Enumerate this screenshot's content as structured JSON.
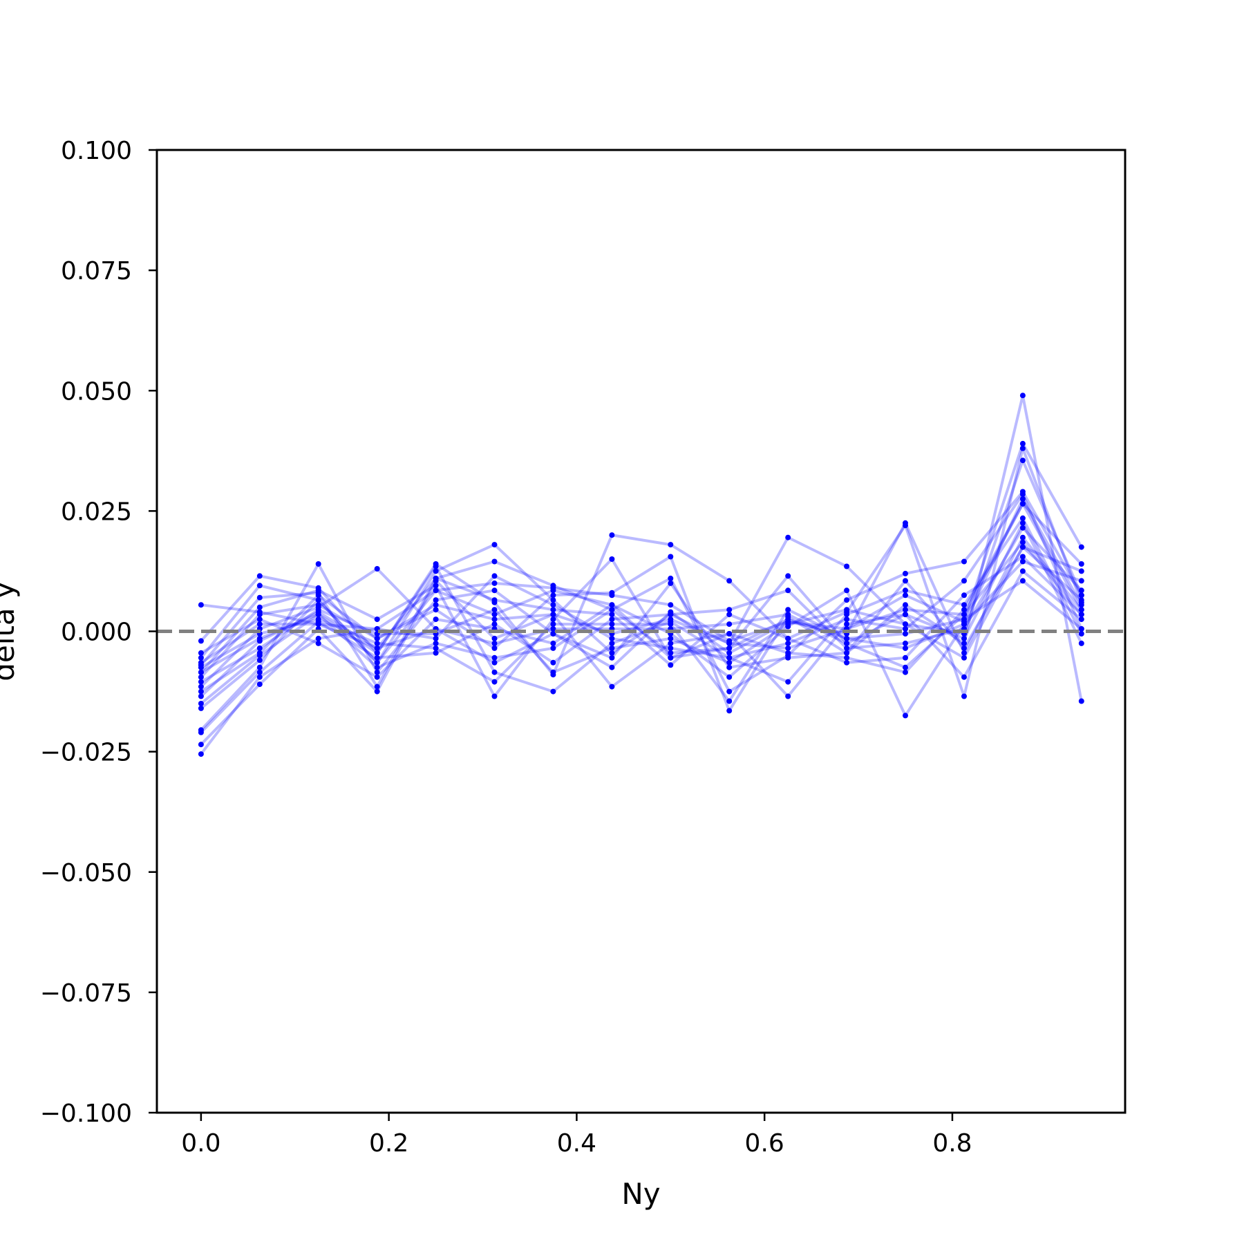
{
  "chart_data": {
    "type": "line",
    "xlabel": "Ny",
    "ylabel": "delta y",
    "xlim": [
      -0.047,
      0.984
    ],
    "ylim": [
      -0.1,
      0.1
    ],
    "x_ticks": [
      "0.0",
      "0.2",
      "0.4",
      "0.6",
      "0.8"
    ],
    "x_tick_values": [
      0.0,
      0.2,
      0.4,
      0.6,
      0.8
    ],
    "y_ticks": [
      "0.100",
      "0.075",
      "0.050",
      "0.025",
      "0.000",
      "−0.025",
      "−0.050",
      "−0.075",
      "−0.100"
    ],
    "y_tick_values": [
      0.1,
      0.075,
      0.05,
      0.025,
      0.0,
      -0.025,
      -0.05,
      -0.075,
      -0.1
    ],
    "grid": false,
    "reference_line": {
      "y": 0.0,
      "style": "dashed",
      "color": "#808080"
    },
    "series_color": "#0000ff",
    "x": [
      0.0,
      0.0625,
      0.125,
      0.1875,
      0.25,
      0.3125,
      0.375,
      0.4375,
      0.5,
      0.5625,
      0.625,
      0.6875,
      0.75,
      0.8125,
      0.875,
      0.9375
    ],
    "series": [
      {
        "values": [
          0.0055,
          0.004,
          0.0015,
          0.0005,
          0.0085,
          0.01,
          0.009,
          0.0075,
          0.0055,
          -0.002,
          0.002,
          0.0005,
          0.0075,
          0.002,
          0.039,
          0.0175
        ]
      },
      {
        "values": [
          -0.002,
          0.0115,
          0.009,
          -0.0045,
          0.014,
          0.006,
          -0.009,
          0.02,
          0.018,
          0.0105,
          -0.0015,
          0.004,
          0.022,
          -0.0135,
          0.038,
          0.006
        ]
      },
      {
        "values": [
          -0.0055,
          0.0095,
          0.0065,
          -0.0065,
          0.0125,
          0.018,
          0.0065,
          -0.0045,
          0.0035,
          -0.0025,
          0.0195,
          0.0135,
          0.0015,
          -0.0055,
          0.0175,
          0.0125
        ]
      },
      {
        "values": [
          -0.007,
          0.007,
          0.008,
          -0.0115,
          0.011,
          0.0145,
          0.0095,
          0.0045,
          0.011,
          -0.0125,
          -0.005,
          0.0065,
          0.012,
          0.0145,
          0.029,
          0.0075
        ]
      },
      {
        "values": [
          -0.0085,
          0.005,
          0.0085,
          0.0025,
          0.0095,
          -0.0135,
          0.0025,
          0.015,
          -0.0055,
          -0.0035,
          0.0115,
          -0.0025,
          -0.0075,
          0.0035,
          0.0265,
          0.014
        ]
      },
      {
        "values": [
          -0.0095,
          0.0035,
          0.0055,
          -0.0015,
          0.0045,
          -0.0035,
          0.0075,
          0.008,
          0.0155,
          -0.0165,
          0.003,
          -0.0045,
          0.0055,
          -0.0025,
          0.049,
          -0.0145
        ]
      },
      {
        "values": [
          -0.0115,
          0.0005,
          0.005,
          0.013,
          0.0005,
          -0.0065,
          -0.0005,
          -0.0075,
          0.004,
          -0.0045,
          0.002,
          -0.0005,
          0.0225,
          -0.0045,
          0.0195,
          0.0045
        ]
      },
      {
        "values": [
          -0.0135,
          -0.002,
          0.004,
          -0.0035,
          0.011,
          0.0065,
          0.0045,
          0.0035,
          -0.007,
          0.0035,
          -0.0015,
          -0.0065,
          -0.0055,
          0.0075,
          0.0155,
          0.0035
        ]
      },
      {
        "values": [
          -0.015,
          -0.005,
          0.0035,
          -0.0045,
          0.0135,
          -0.0085,
          -0.0125,
          -0.0025,
          0.002,
          -0.0055,
          -0.0105,
          0.0035,
          0.0085,
          0.0055,
          0.0235,
          -0.0005
        ]
      },
      {
        "values": [
          -0.016,
          -0.006,
          0.0065,
          -0.0065,
          0.0085,
          0.0035,
          0.0085,
          0.0055,
          -0.0005,
          -0.0095,
          0.001,
          0.0085,
          -0.0175,
          0.0015,
          0.0145,
          0.0105
        ]
      },
      {
        "values": [
          -0.0205,
          -0.0075,
          0.014,
          -0.0085,
          0.0065,
          0.0085,
          -0.0005,
          -0.0055,
          0.01,
          -0.0075,
          -0.0055,
          -0.0045,
          0.0105,
          -0.0035,
          0.0175,
          0.0065
        ]
      },
      {
        "values": [
          -0.021,
          -0.0085,
          0.002,
          -0.0055,
          -0.0045,
          0.0015,
          -0.0065,
          0.0025,
          0.0035,
          0.0045,
          0.0085,
          -0.0035,
          -0.0025,
          0.0005,
          0.0215,
          0.0085
        ]
      },
      {
        "values": [
          -0.0235,
          -0.011,
          0.0005,
          -0.0125,
          0.0105,
          -0.0015,
          0.0035,
          -0.0115,
          -0.0025,
          -0.0005,
          -0.0135,
          0.0015,
          0.0035,
          -0.0095,
          0.0125,
          0.0025
        ]
      },
      {
        "values": [
          -0.0255,
          -0.0095,
          -0.0015,
          0.0005,
          -0.0015,
          0.0115,
          0.0055,
          -0.0015,
          -0.0035,
          -0.0055,
          -0.0025,
          0.0025,
          0.0005,
          0.0105,
          0.0285,
          0.0005
        ]
      },
      {
        "values": [
          -0.0075,
          -0.0005,
          0.0025,
          -0.0025,
          -0.0035,
          -0.0105,
          0.0015,
          0.0015,
          0.0015,
          -0.0145,
          0.0045,
          -0.0015,
          -0.0005,
          0.0025,
          0.0105,
          0.0005
        ]
      },
      {
        "values": [
          -0.0045,
          0.0025,
          -0.0025,
          -0.0095,
          0.0025,
          0.0005,
          -0.0025,
          0.0055,
          -0.0055,
          -0.0005,
          -0.0045,
          -0.0055,
          -0.0085,
          0.0045,
          0.0265,
          0.0045
        ]
      },
      {
        "values": [
          -0.0105,
          -0.0035,
          0.0045,
          -0.0005,
          -0.0005,
          0.0045,
          -0.0085,
          -0.0035,
          -0.0015,
          -0.0065,
          0.0015,
          0.0045,
          0.0015,
          -0.0005,
          0.0355,
          0.0075
        ]
      },
      {
        "values": [
          -0.0065,
          0.0015,
          0.0015,
          -0.0035,
          0.0005,
          -0.0025,
          0.0005,
          0.0005,
          0.0005,
          0.0015,
          0.0035,
          -0.0025,
          0.0035,
          -0.0015,
          0.0225,
          -0.0025
        ]
      },
      {
        "values": [
          -0.0125,
          -0.0045,
          0.0075,
          -0.0015,
          0.0055,
          0.0025,
          0.0035,
          -0.0005,
          0.0025,
          -0.0025,
          -0.0035,
          0.0005,
          0.0045,
          0.0035,
          0.0185,
          0.0035
        ]
      },
      {
        "values": [
          -0.0085,
          -0.0015,
          0.0035,
          -0.0075,
          -0.0025,
          -0.0055,
          -0.0035,
          0.0045,
          -0.0045,
          -0.0035,
          0.0025,
          -0.0015,
          -0.0035,
          0.0015,
          0.0275,
          0.0055
        ]
      }
    ]
  }
}
